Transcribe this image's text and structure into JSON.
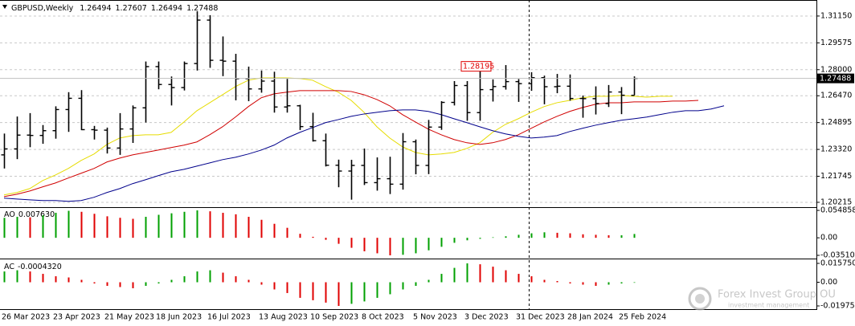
{
  "chart_data": [
    {
      "type": "ohlc",
      "title": "GBPUSD,Weekly",
      "color": "#000000",
      "categories": [
        "26 Mar 2023",
        null,
        null,
        null,
        "23 Apr 2023",
        null,
        null,
        null,
        "21 May 2023",
        null,
        null,
        null,
        "18 Jun 2023",
        null,
        null,
        null,
        "16 Jul 2023",
        null,
        null,
        null,
        "13 Aug 2023",
        null,
        null,
        null,
        "10 Sep 2023",
        null,
        null,
        null,
        "8 Oct 2023",
        null,
        null,
        null,
        "5 Nov 2023",
        null,
        null,
        null,
        "3 Dec 2023",
        null,
        null,
        null,
        "31 Dec 2023",
        null,
        null,
        null,
        "28 Jan 2024",
        null,
        null,
        null,
        "25 Feb 2024",
        null
      ],
      "open": [
        1.23,
        1.2335,
        1.2416,
        1.2414,
        1.2442,
        1.2566,
        1.2632,
        1.2448,
        1.2445,
        1.234,
        1.2452,
        1.2576,
        1.2818,
        1.2713,
        1.2695,
        1.2836,
        1.3091,
        1.2855,
        1.285,
        1.2747,
        1.2687,
        1.2733,
        1.2581,
        1.2588,
        1.2466,
        1.2383,
        1.2239,
        1.2205,
        1.2238,
        1.2137,
        1.216,
        1.2128,
        1.2377,
        1.2238,
        1.2463,
        1.2608,
        1.2707,
        1.2548,
        1.2683,
        1.2701,
        1.273,
        1.2718,
        1.2753,
        1.27,
        1.2703,
        1.2631,
        1.263,
        1.2601,
        1.2669,
        1.26494
      ],
      "high": [
        1.2425,
        1.2525,
        1.2545,
        1.2475,
        1.2585,
        1.2668,
        1.268,
        1.247,
        1.246,
        1.2545,
        1.259,
        1.2848,
        1.2848,
        1.276,
        1.2848,
        1.3143,
        1.312,
        1.2995,
        1.2893,
        1.2818,
        1.2795,
        1.2788,
        1.2746,
        1.2594,
        1.2547,
        1.2425,
        1.2272,
        1.2271,
        1.2337,
        1.2285,
        1.2289,
        1.2428,
        1.239,
        1.2505,
        1.2615,
        1.2733,
        1.2733,
        1.2794,
        1.2743,
        1.2827,
        1.2745,
        1.2785,
        1.2765,
        1.2775,
        1.2772,
        1.2648,
        1.2702,
        1.271,
        1.2698,
        1.27607
      ],
      "low": [
        1.222,
        1.2275,
        1.2345,
        1.2365,
        1.2395,
        1.2435,
        1.2445,
        1.239,
        1.2308,
        1.23,
        1.237,
        1.249,
        1.2685,
        1.259,
        1.2678,
        1.2795,
        1.2811,
        1.2762,
        1.262,
        1.2615,
        1.2665,
        1.2548,
        1.2548,
        1.2446,
        1.2378,
        1.2232,
        1.211,
        1.2037,
        1.2123,
        1.209,
        1.207,
        1.2096,
        1.2186,
        1.2187,
        1.2447,
        1.259,
        1.25,
        1.25,
        1.2613,
        1.2683,
        1.2611,
        1.2676,
        1.2597,
        1.2662,
        1.2618,
        1.2518,
        1.2537,
        1.2581,
        1.2539,
        1.26494
      ],
      "close": [
        1.2335,
        1.2416,
        1.2414,
        1.2442,
        1.2566,
        1.2632,
        1.2448,
        1.2445,
        1.234,
        1.2452,
        1.2576,
        1.2818,
        1.2713,
        1.2695,
        1.2836,
        1.3091,
        1.2855,
        1.285,
        1.2747,
        1.2687,
        1.2733,
        1.2581,
        1.2588,
        1.2466,
        1.2383,
        1.2239,
        1.2205,
        1.2238,
        1.2137,
        1.216,
        1.2128,
        1.2377,
        1.2238,
        1.2463,
        1.2608,
        1.2707,
        1.2548,
        1.2683,
        1.2701,
        1.273,
        1.2718,
        1.2753,
        1.27,
        1.2703,
        1.2631,
        1.263,
        1.2601,
        1.2669,
        1.265,
        1.27488
      ],
      "overlays": [
        {
          "color": "#e6dc00",
          "values": [
            1.2065,
            1.2079,
            1.2102,
            1.2149,
            1.2182,
            1.222,
            1.2267,
            1.2305,
            1.2361,
            1.2399,
            1.2413,
            1.2418,
            1.2418,
            1.2432,
            1.2493,
            1.2559,
            1.2606,
            1.2653,
            1.2701,
            1.2738,
            1.2752,
            1.2752,
            1.2752,
            1.2748,
            1.2738,
            1.2701,
            1.2668,
            1.262,
            1.255,
            1.2465,
            1.2399,
            1.2347,
            1.2314,
            1.23,
            1.2305,
            1.2314,
            1.2338,
            1.2371,
            1.2432,
            1.2479,
            1.2512,
            1.255,
            1.2583,
            1.2606,
            1.262,
            1.2635,
            1.2644,
            1.2644,
            1.2649,
            1.2644,
            1.2639,
            1.2644,
            1.2644
          ]
        },
        {
          "color": "#d00000",
          "values": [
            1.2055,
            1.2069,
            1.2088,
            1.2112,
            1.2135,
            1.2164,
            1.2192,
            1.222,
            1.2258,
            1.2281,
            1.23,
            1.2314,
            1.2328,
            1.2343,
            1.2357,
            1.2376,
            1.2418,
            1.2465,
            1.2522,
            1.2583,
            1.2635,
            1.2658,
            1.2668,
            1.2677,
            1.2677,
            1.2677,
            1.2677,
            1.2672,
            1.2653,
            1.2625,
            1.2588,
            1.2536,
            1.2493,
            1.2451,
            1.2418,
            1.239,
            1.2371,
            1.2361,
            1.2371,
            1.239,
            1.2418,
            1.2456,
            1.2493,
            1.2526,
            1.2555,
            1.2578,
            1.2597,
            1.2606,
            1.2606,
            1.2611,
            1.2611,
            1.2611,
            1.2616,
            1.2616,
            1.262
          ]
        },
        {
          "color": "#00008b",
          "values": [
            1.2046,
            1.2041,
            1.2036,
            1.2032,
            1.2032,
            1.2027,
            1.2032,
            1.2051,
            1.2079,
            1.2102,
            1.2131,
            1.2154,
            1.2178,
            1.2201,
            1.2215,
            1.2234,
            1.2253,
            1.2272,
            1.2286,
            1.2305,
            1.2328,
            1.2357,
            1.2399,
            1.2432,
            1.246,
            1.2489,
            1.2507,
            1.2526,
            1.254,
            1.255,
            1.2559,
            1.2564,
            1.2564,
            1.2555,
            1.2536,
            1.2512,
            1.2489,
            1.2465,
            1.2442,
            1.2423,
            1.2409,
            1.2399,
            1.2404,
            1.2413,
            1.2437,
            1.2456,
            1.2474,
            1.2489,
            1.2503,
            1.2512,
            1.2522,
            1.2536,
            1.255,
            1.2559,
            1.2559,
            1.2569,
            1.2588
          ]
        }
      ],
      "marked_price": 1.28195,
      "marked_color": "#e00000",
      "ylim": [
        1.1993,
        1.3209
      ],
      "yticks": [
        {
          "value": 1.3115,
          "label": "1.31150"
        },
        1.29575,
        {
          "value": 1.28,
          "label": "1.28000"
        },
        {
          "value": 1.2647,
          "label": "1.26470"
        },
        1.24895,
        {
          "value": 1.2332,
          "label": "1.23320"
        },
        1.21745,
        1.20215
      ],
      "grid": true
    },
    {
      "type": "bar",
      "title": "AO",
      "current_label": "0.007630",
      "up_color": "#00a000",
      "down_color": "#e00000",
      "values": [
        0.04,
        0.042,
        0.041,
        0.045,
        0.05,
        0.054,
        0.052,
        0.048,
        0.043,
        0.04,
        0.038,
        0.042,
        0.046,
        0.049,
        0.052,
        0.054858,
        0.053,
        0.05,
        0.047,
        0.042,
        0.036,
        0.028,
        0.02,
        0.008,
        0.002,
        -0.004,
        -0.012,
        -0.02,
        -0.027,
        -0.031,
        -0.035104,
        -0.034,
        -0.031,
        -0.025,
        -0.018,
        -0.01,
        -0.005,
        -0.002,
        0.001,
        0.003,
        0.006,
        0.009,
        0.011,
        0.01,
        0.009,
        0.007,
        0.006,
        0.005,
        0.005,
        0.00763
      ],
      "ylim": [
        -0.035104,
        0.054858
      ],
      "yticks": [
        0.054858,
        {
          "value": 0,
          "label": "0.00"
        },
        -0.035104
      ],
      "grid": false
    },
    {
      "type": "bar",
      "title": "AC",
      "current_label": "-0.0004320",
      "up_color": "#00a000",
      "down_color": "#e00000",
      "values": [
        0.009,
        0.01,
        0.009,
        0.007,
        0.005,
        0.004,
        0.002,
        -0.001,
        -0.003,
        -0.004,
        -0.005,
        -0.003,
        -0.001,
        0.002,
        0.005,
        0.009,
        0.01,
        0.008,
        0.005,
        0.002,
        -0.002,
        -0.006,
        -0.009,
        -0.013,
        -0.015,
        -0.017,
        -0.019756,
        -0.018,
        -0.016,
        -0.013,
        -0.01,
        -0.006,
        -0.003,
        0.002,
        0.007,
        0.012,
        0.0157503,
        0.015,
        0.013,
        0.01,
        0.007,
        0.005,
        0.002,
        0.001,
        -0.001,
        -0.002,
        -0.003,
        -0.002,
        -0.001,
        -0.000432
      ],
      "ylim": [
        -0.019756,
        0.0157503
      ],
      "yticks": [
        0.0157503,
        {
          "value": 0,
          "label": "0.00"
        },
        -0.019756
      ],
      "grid": false
    }
  ],
  "watermark": {
    "title": "Forex Invest Group OU",
    "subtitle": "investment management"
  }
}
